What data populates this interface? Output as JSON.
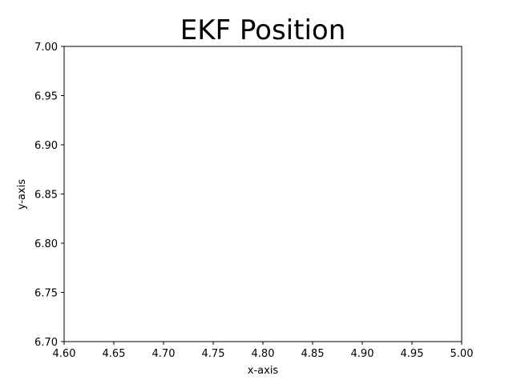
{
  "chart_data": {
    "type": "scatter",
    "title": "EKF Position",
    "xlabel": "x-axis",
    "ylabel": "y-axis",
    "xlim": [
      4.6,
      5.0
    ],
    "ylim": [
      6.7,
      7.0
    ],
    "xticks": [
      "4.60",
      "4.65",
      "4.70",
      "4.75",
      "4.80",
      "4.85",
      "4.90",
      "4.95",
      "5.00"
    ],
    "yticks": [
      "6.70",
      "6.75",
      "6.80",
      "6.85",
      "6.90",
      "6.95",
      "7.00"
    ],
    "grid": false,
    "series": []
  }
}
